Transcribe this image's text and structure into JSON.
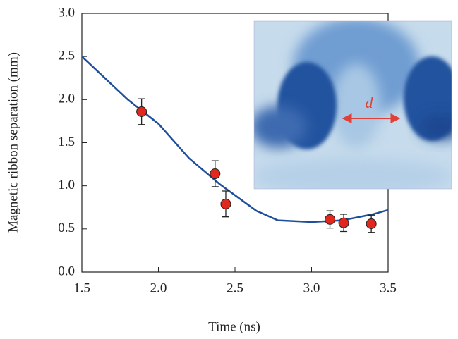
{
  "chart_data": {
    "type": "scatter",
    "x_label": "Time (ns)",
    "y_label": "Magnetic ribbon separation (mm)",
    "inset_label": "d",
    "xlim": [
      1.5,
      3.5
    ],
    "xticks": [
      1.5,
      {
        "value": 2.0,
        "label": "2.0"
      },
      2.5,
      {
        "value": 3.0,
        "label": "3.0"
      },
      3.5
    ],
    "ylim": [
      0,
      3
    ],
    "yticks": [
      {
        "value": 0,
        "label": "0.0"
      },
      0.5,
      {
        "value": 1,
        "label": "1.0"
      },
      1.5,
      {
        "value": 2,
        "label": "2.0"
      },
      2.5,
      {
        "value": 3,
        "label": "3.0"
      }
    ],
    "series": [
      {
        "type": "line",
        "color": "#1f4f9c",
        "x": [
          1.5,
          1.8,
          2.0,
          2.2,
          2.4,
          2.64,
          2.78,
          3.0,
          3.2,
          3.4,
          3.5
        ],
        "values": [
          2.5,
          2.0,
          1.72,
          1.32,
          1.02,
          0.71,
          0.6,
          0.58,
          0.6,
          0.67,
          0.72
        ]
      },
      {
        "type": "scatter",
        "color": "#e0281e",
        "x": [
          1.89,
          2.37,
          2.44,
          3.12,
          3.21,
          3.39
        ],
        "values": [
          1.86,
          1.14,
          0.79,
          0.61,
          0.57,
          0.56
        ],
        "errors": [
          0.15,
          0.15,
          0.15,
          0.1,
          0.1,
          0.1
        ]
      }
    ]
  }
}
